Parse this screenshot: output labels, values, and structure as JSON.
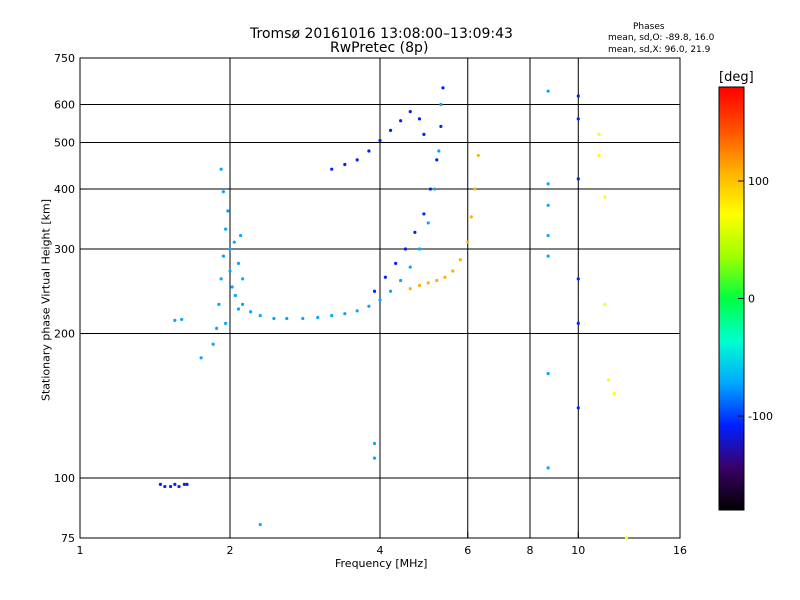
{
  "chart_data": {
    "type": "scatter",
    "title": "Tromsø 20161016 13:08:00–13:09:43",
    "subtitle": "RwPretec (8p)",
    "legend": {
      "heading": "Phases",
      "line_o": "mean, sd,O: -89.8, 16.0",
      "line_x": "mean, sd,X:  96.0, 21.9"
    },
    "xlabel": "Frequency [MHz]",
    "ylabel": "Stationary phase Virtual Height [km]",
    "x_scale": "log",
    "y_scale": "log",
    "xlim": [
      1,
      16
    ],
    "ylim": [
      75,
      750
    ],
    "x_ticks": [
      1,
      2,
      4,
      6,
      8,
      10,
      16
    ],
    "y_ticks": [
      75,
      100,
      200,
      300,
      400,
      500,
      600,
      750
    ],
    "x_grid": [
      2,
      4,
      6,
      10
    ],
    "y_grid": [
      100,
      200,
      300,
      400,
      500,
      600
    ],
    "x_grid_extra": [
      8
    ],
    "colorbar": {
      "label": "[deg]",
      "range": [
        -180,
        180
      ],
      "ticks": [
        100,
        0,
        -100
      ],
      "colors": [
        "#000000",
        "#3a0068",
        "#0020ff",
        "#00a8ff",
        "#00ffd0",
        "#00ff40",
        "#a0ff00",
        "#ffff00",
        "#ffb000",
        "#ff5000",
        "#ff0000"
      ]
    },
    "series": [
      {
        "x": [
          1.45,
          1.48,
          1.52,
          1.55,
          1.58,
          1.62,
          1.64
        ],
        "y": [
          97,
          96,
          96,
          97,
          96,
          97,
          97
        ],
        "phase": -95
      },
      {
        "x": [
          1.55,
          1.6,
          1.75
        ],
        "y": [
          213,
          214,
          178
        ],
        "phase": -90
      },
      {
        "x": [
          1.85,
          1.88,
          1.9,
          1.92,
          1.94,
          1.96,
          1.98,
          2.0,
          2.02,
          2.05,
          2.08,
          2.1,
          2.12
        ],
        "y": [
          190,
          205,
          230,
          260,
          290,
          330,
          360,
          300,
          250,
          240,
          280,
          320,
          260
        ],
        "phase": -85
      },
      {
        "x": [
          1.92,
          1.94,
          1.96,
          2.0,
          2.04,
          2.08
        ],
        "y": [
          440,
          395,
          210,
          270,
          310,
          225
        ],
        "phase": -80
      },
      {
        "x": [
          2.12,
          2.2,
          2.3,
          2.45,
          2.6,
          2.8,
          3.0,
          3.2,
          3.4,
          3.6,
          3.8,
          4.0,
          4.2,
          4.4,
          4.6,
          4.8,
          5.0,
          5.15,
          5.25,
          5.3
        ],
        "y": [
          230,
          222,
          218,
          215,
          215,
          215,
          216,
          218,
          220,
          223,
          228,
          235,
          245,
          258,
          275,
          300,
          340,
          400,
          480,
          600
        ],
        "phase": -90
      },
      {
        "x": [
          3.9,
          4.1,
          4.3,
          4.5,
          4.7,
          4.9,
          5.05,
          5.2,
          5.3,
          5.35
        ],
        "y": [
          245,
          262,
          280,
          300,
          325,
          355,
          400,
          460,
          540,
          650
        ],
        "phase": -95
      },
      {
        "x": [
          3.2,
          3.4,
          3.6,
          3.8,
          4.0,
          4.2,
          4.4,
          4.6,
          4.8,
          4.9
        ],
        "y": [
          440,
          450,
          460,
          480,
          505,
          530,
          555,
          580,
          560,
          520
        ],
        "phase": -100
      },
      {
        "x": [
          4.6,
          4.8,
          5.0,
          5.2,
          5.4,
          5.6,
          5.8,
          6.0,
          6.1,
          6.2,
          6.3
        ],
        "y": [
          248,
          252,
          255,
          258,
          262,
          270,
          285,
          310,
          350,
          400,
          470
        ],
        "phase": 110
      },
      {
        "x": [
          8.7,
          8.7,
          8.7,
          8.7,
          8.7,
          8.7,
          8.7
        ],
        "y": [
          640,
          410,
          370,
          320,
          290,
          165,
          105
        ],
        "phase": -85
      },
      {
        "x": [
          10.0,
          10.0,
          10.0,
          10.0,
          10.0,
          10.0
        ],
        "y": [
          625,
          560,
          420,
          260,
          210,
          140
        ],
        "phase": -100
      },
      {
        "x": [
          11.0,
          11.0,
          11.3,
          11.3,
          11.5,
          11.8,
          12.5
        ],
        "y": [
          520,
          470,
          385,
          230,
          160,
          150,
          75
        ],
        "phase": 60
      },
      {
        "x": [
          2.3,
          3.9,
          3.9
        ],
        "y": [
          80,
          110,
          118
        ],
        "phase": -90
      }
    ]
  }
}
